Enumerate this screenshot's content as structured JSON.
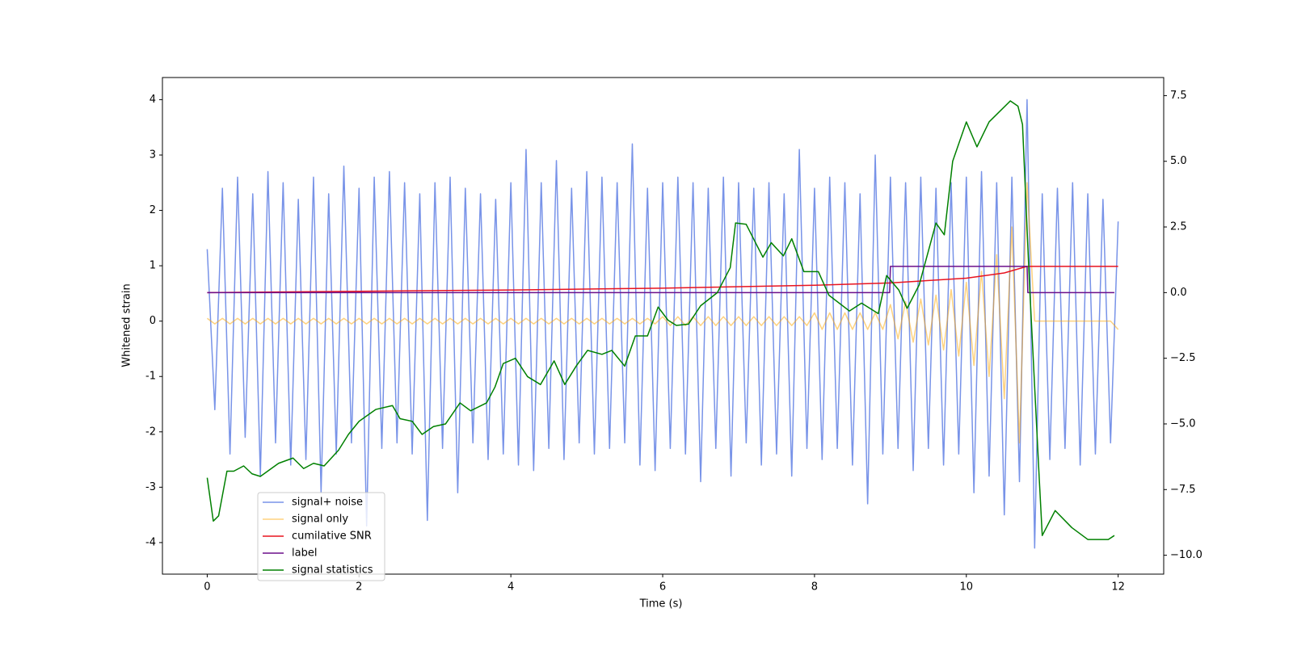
{
  "chart_data": {
    "type": "line",
    "xlabel": "Time (s)",
    "ylabel": "Whitened strain",
    "xlim": [
      -0.59,
      12.6
    ],
    "ylim": [
      -4.57,
      4.4
    ],
    "y2lim": [
      -10.72,
      8.19
    ],
    "xticks": [
      0,
      2,
      4,
      6,
      8,
      10,
      12
    ],
    "yticks": [
      -4,
      -3,
      -2,
      -1,
      0,
      1,
      2,
      3,
      4
    ],
    "y2ticks": [
      {
        "value": -10,
        "label": "−10.0"
      },
      {
        "value": -7.5,
        "label": "−7.5"
      },
      {
        "value": -5,
        "label": "−5.0"
      },
      {
        "value": -2.5,
        "label": "−2.5"
      },
      {
        "value": 0,
        "label": "0.0"
      },
      2.5,
      {
        "value": 5,
        "label": "5.0"
      },
      7.5
    ],
    "legend": "lower left",
    "grid": false,
    "x": [
      0,
      0.1,
      0.2,
      0.3,
      0.4,
      0.5,
      0.6,
      0.7,
      0.8,
      0.9,
      1,
      1.1,
      1.2,
      1.3,
      1.4,
      1.5,
      1.6,
      1.7,
      1.8,
      1.9,
      2,
      2.1,
      2.2,
      2.3,
      2.4,
      2.5,
      2.6,
      2.7,
      2.8,
      2.9,
      3,
      3.1,
      3.2,
      3.3,
      3.4,
      3.5,
      3.6,
      3.7,
      3.8,
      3.9,
      4,
      4.1,
      4.2,
      4.3,
      4.4,
      4.5,
      4.6,
      4.7,
      4.8,
      4.9,
      5,
      5.1,
      5.2,
      5.3,
      5.4,
      5.5,
      5.6,
      5.7,
      5.8,
      5.9,
      6,
      6.1,
      6.2,
      6.3,
      6.4,
      6.5,
      6.6,
      6.7,
      6.8,
      6.9,
      7,
      7.1,
      7.2,
      7.3,
      7.4,
      7.5,
      7.6,
      7.7,
      7.8,
      7.9,
      8,
      8.1,
      8.2,
      8.3,
      8.4,
      8.5,
      8.6,
      8.7,
      8.8,
      8.9,
      9,
      9.1,
      9.2,
      9.3,
      9.4,
      9.5,
      9.6,
      9.7,
      9.8,
      9.9,
      10,
      10.1,
      10.2,
      10.3,
      10.4,
      10.5,
      10.6,
      10.7,
      10.8,
      10.9,
      11,
      11.1,
      11.2,
      11.3,
      11.4,
      11.5,
      11.6,
      11.7,
      11.8,
      11.9,
      12
    ],
    "series": [
      {
        "name": "signal+ noise",
        "color": "#7893e8",
        "axis": "y",
        "values": [
          1.3,
          -1.6,
          2.4,
          -2.4,
          2.6,
          -2.1,
          2.3,
          -2.8,
          2.7,
          -2.2,
          2.5,
          -2.6,
          2.2,
          -2.5,
          2.6,
          -3.1,
          2.3,
          -2.4,
          2.8,
          -2.2,
          2.4,
          -3.7,
          2.6,
          -2.3,
          2.7,
          -2.2,
          2.5,
          -2.4,
          2.3,
          -3.6,
          2.5,
          -2.3,
          2.6,
          -3.1,
          2.4,
          -2.2,
          2.3,
          -2.5,
          2.2,
          -2.4,
          2.5,
          -2.6,
          3.1,
          -2.7,
          2.5,
          -2.3,
          2.9,
          -2.5,
          2.4,
          -2.2,
          2.7,
          -2.4,
          2.6,
          -2.3,
          2.5,
          -2.2,
          3.2,
          -2.6,
          2.4,
          -2.7,
          2.5,
          -2.3,
          2.6,
          -2.4,
          2.5,
          -2.9,
          2.4,
          -2.3,
          2.6,
          -2.8,
          2.5,
          -2.2,
          2.4,
          -2.6,
          2.5,
          -2.4,
          2.3,
          -2.8,
          3.1,
          -2.3,
          2.4,
          -2.5,
          2.6,
          -2.3,
          2.5,
          -2.6,
          2.3,
          -3.3,
          3.0,
          -2.4,
          2.6,
          -2.3,
          2.5,
          -2.7,
          2.6,
          -2.3,
          2.4,
          -2.6,
          2.5,
          -2.4,
          2.6,
          -3.1,
          2.7,
          -2.8,
          2.5,
          -3.5,
          2.6,
          -2.9,
          4.0,
          -4.1,
          2.3,
          -2.5,
          2.4,
          -2.3,
          2.5,
          -2.6,
          2.3,
          -2.4,
          2.2,
          -2.2,
          1.8
        ]
      },
      {
        "name": "signal only",
        "color": "#ffa500",
        "axis": "y",
        "values": [
          0.05,
          -0.05,
          0.05,
          -0.05,
          0.05,
          -0.05,
          0.05,
          -0.05,
          0.05,
          -0.05,
          0.05,
          -0.05,
          0.05,
          -0.05,
          0.05,
          -0.05,
          0.05,
          -0.05,
          0.05,
          -0.05,
          0.05,
          -0.05,
          0.05,
          -0.05,
          0.05,
          -0.05,
          0.05,
          -0.05,
          0.05,
          -0.05,
          0.05,
          -0.05,
          0.05,
          -0.05,
          0.05,
          -0.05,
          0.05,
          -0.05,
          0.05,
          -0.05,
          0.05,
          -0.05,
          0.05,
          -0.05,
          0.05,
          -0.05,
          0.05,
          -0.05,
          0.05,
          -0.05,
          0.05,
          -0.05,
          0.05,
          -0.05,
          0.05,
          -0.05,
          0.05,
          -0.05,
          0.05,
          -0.05,
          0.08,
          -0.08,
          0.08,
          -0.08,
          0.08,
          -0.08,
          0.08,
          -0.08,
          0.08,
          -0.08,
          0.08,
          -0.08,
          0.08,
          -0.08,
          0.08,
          -0.08,
          0.08,
          -0.08,
          0.08,
          -0.08,
          0.15,
          -0.15,
          0.15,
          -0.15,
          0.15,
          -0.15,
          0.15,
          -0.15,
          0.15,
          -0.15,
          0.3,
          -0.32,
          0.35,
          -0.38,
          0.4,
          -0.43,
          0.47,
          -0.52,
          0.57,
          -0.63,
          0.7,
          -0.8,
          0.9,
          -1.0,
          1.2,
          -1.4,
          1.7,
          -2.2,
          2.5,
          0,
          0,
          0,
          0,
          0,
          0,
          0,
          0,
          0,
          0,
          0,
          -0.15
        ]
      },
      {
        "name": "cumilative SNR",
        "color": "#e8131f",
        "axis": "y2",
        "x": [
          0,
          2,
          4,
          6,
          8,
          9,
          10,
          10.5,
          10.8,
          12
        ],
        "values": [
          0,
          0.05,
          0.1,
          0.17,
          0.28,
          0.37,
          0.55,
          0.75,
          1,
          1
        ]
      },
      {
        "name": "label",
        "color": "#6b0f8a",
        "axis": "y2",
        "x": [
          0,
          8.99,
          9,
          10.8,
          10.81,
          11.95
        ],
        "values": [
          0,
          0,
          1,
          1,
          0,
          0
        ]
      },
      {
        "name": "signal statistics",
        "color": "#008000",
        "axis": "y2",
        "x": [
          0,
          0.08,
          0.15,
          0.26,
          0.35,
          0.48,
          0.59,
          0.7,
          0.94,
          1.13,
          1.27,
          1.4,
          1.54,
          1.73,
          1.86,
          2.0,
          2.22,
          2.44,
          2.54,
          2.7,
          2.83,
          2.98,
          3.14,
          3.33,
          3.47,
          3.68,
          3.79,
          3.9,
          4.06,
          4.22,
          4.39,
          4.57,
          4.71,
          4.86,
          5.01,
          5.2,
          5.33,
          5.5,
          5.64,
          5.8,
          5.94,
          6.07,
          6.18,
          6.34,
          6.5,
          6.72,
          6.89,
          6.96,
          7.1,
          7.32,
          7.43,
          7.59,
          7.7,
          7.86,
          8.05,
          8.19,
          8.46,
          8.62,
          8.84,
          8.95,
          9.11,
          9.22,
          9.38,
          9.6,
          9.71,
          9.82,
          10.0,
          10.14,
          10.3,
          10.58,
          10.68,
          10.74,
          10.83,
          10.96,
          11.0,
          11.17,
          11.39,
          11.6,
          11.87,
          11.95
        ],
        "values": [
          -7.05,
          -8.7,
          -8.5,
          -6.8,
          -6.8,
          -6.6,
          -6.9,
          -7.0,
          -6.5,
          -6.3,
          -6.7,
          -6.5,
          -6.6,
          -6.0,
          -5.4,
          -4.9,
          -4.45,
          -4.3,
          -4.8,
          -4.9,
          -5.4,
          -5.1,
          -5.0,
          -4.2,
          -4.5,
          -4.2,
          -3.6,
          -2.7,
          -2.5,
          -3.2,
          -3.5,
          -2.6,
          -3.5,
          -2.8,
          -2.2,
          -2.35,
          -2.2,
          -2.8,
          -1.65,
          -1.65,
          -0.55,
          -1.05,
          -1.25,
          -1.2,
          -0.5,
          0,
          0.95,
          2.65,
          2.6,
          1.35,
          1.9,
          1.4,
          2.05,
          0.8,
          0.8,
          -0.1,
          -0.7,
          -0.4,
          -0.8,
          0.65,
          0.1,
          -0.6,
          0.3,
          2.65,
          2.2,
          5.0,
          6.5,
          5.55,
          6.5,
          7.3,
          7.1,
          6.4,
          0.45,
          -7.05,
          -9.25,
          -8.3,
          -8.95,
          -9.4,
          -9.4,
          -9.25
        ]
      }
    ]
  }
}
